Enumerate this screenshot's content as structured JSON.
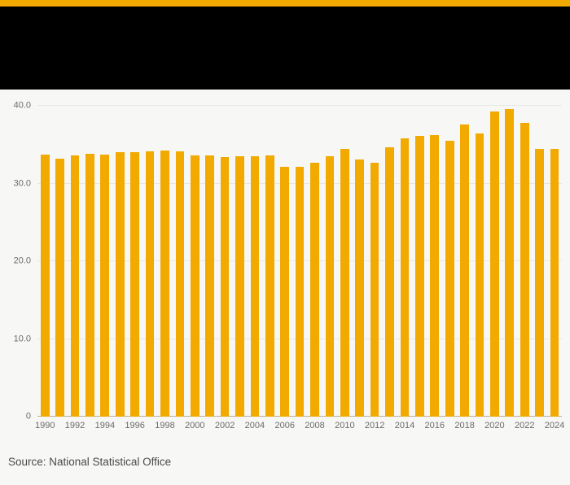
{
  "page": {
    "background": "#f7f7f5",
    "accent_color": "#F2A900",
    "header_color": "#000000"
  },
  "chart_data": {
    "type": "bar",
    "bar_color": "#F2A900",
    "x": [
      1990,
      1991,
      1992,
      1993,
      1994,
      1995,
      1996,
      1997,
      1998,
      1999,
      2000,
      2001,
      2002,
      2003,
      2004,
      2005,
      2006,
      2007,
      2008,
      2009,
      2010,
      2011,
      2012,
      2013,
      2014,
      2015,
      2016,
      2017,
      2018,
      2019,
      2020,
      2021,
      2022,
      2023,
      2024
    ],
    "values": [
      33.7,
      33.2,
      33.6,
      33.8,
      33.7,
      34.0,
      34.0,
      34.1,
      34.2,
      34.1,
      33.6,
      33.6,
      33.4,
      33.5,
      33.5,
      33.6,
      32.1,
      32.1,
      32.7,
      33.5,
      34.4,
      33.1,
      32.7,
      34.7,
      35.8,
      36.1,
      36.2,
      35.5,
      37.6,
      36.4,
      39.3,
      39.6,
      37.8,
      34.5,
      34.5
    ],
    "ylim": [
      0,
      40
    ],
    "yticks": [
      0,
      10,
      20,
      30,
      40
    ],
    "ytick_labels": [
      "0",
      "10.0",
      "20.0",
      "30.0",
      "40.0"
    ],
    "xtick_step": 2,
    "grid": true,
    "legend": false,
    "xlabel": "",
    "ylabel": ""
  },
  "footer": {
    "source_text": "Source: National Statistical Office"
  }
}
